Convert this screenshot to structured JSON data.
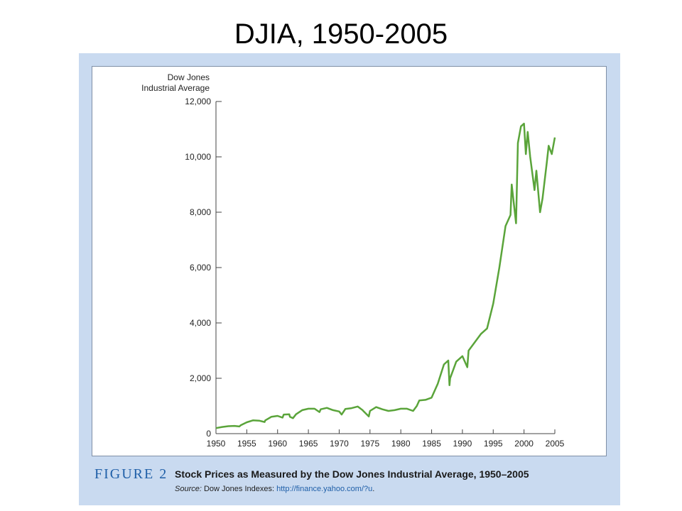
{
  "slide": {
    "title": "DJIA, 1950-2005"
  },
  "figure": {
    "label": "FIGURE 2",
    "caption": "Stock Prices as Measured by the Dow Jones Industrial Average, 1950–2005",
    "source_label": "Source:",
    "source_text": "Dow Jones Indexes:",
    "source_link": "http://finance.yahoo.com/?u",
    "source_end": "."
  },
  "chart_data": {
    "type": "line",
    "title": "",
    "ylabel_lines": [
      "Dow Jones",
      "Industrial Average"
    ],
    "xlabel": "",
    "xlim": [
      1950,
      2005
    ],
    "ylim": [
      0,
      12000
    ],
    "x_ticks": [
      "1950",
      "1955",
      "1960",
      "1965",
      "1970",
      "1975",
      "1980",
      "1985",
      "1990",
      "1995",
      "2000",
      "2005"
    ],
    "y_ticks": [
      "0",
      "2,000",
      "4,000",
      "6,000",
      "8,000",
      "10,000",
      "12,000"
    ],
    "grid": false,
    "line_color": "#5aa43a",
    "series": [
      {
        "x": [
          1950,
          1951,
          1952,
          1953,
          1953.8,
          1954,
          1955,
          1956,
          1957,
          1957.9,
          1958,
          1959,
          1960,
          1960.8,
          1961,
          1961.9,
          1962,
          1962.5,
          1963,
          1964,
          1965,
          1966,
          1966.8,
          1967,
          1968,
          1969,
          1970,
          1970.4,
          1971,
          1972,
          1973,
          1973.8,
          1974,
          1974.8,
          1975,
          1976,
          1977,
          1978,
          1979,
          1980,
          1981,
          1982,
          1982.6,
          1983,
          1984,
          1985,
          1986,
          1987,
          1987.7,
          1987.9,
          1988,
          1989,
          1990,
          1990.8,
          1991,
          1992,
          1993,
          1994,
          1995,
          1996,
          1997,
          1997.8,
          1998,
          1998.7,
          1999,
          1999.5,
          2000,
          2000.3,
          2000.6,
          2001,
          2001.7,
          2002,
          2002.6,
          2003,
          2003.7,
          2004,
          2004.5,
          2005
        ],
        "y": [
          200,
          240,
          270,
          280,
          260,
          300,
          410,
          480,
          470,
          420,
          480,
          610,
          640,
          580,
          690,
          700,
          610,
          560,
          700,
          850,
          900,
          900,
          780,
          880,
          930,
          850,
          800,
          690,
          890,
          920,
          980,
          850,
          800,
          620,
          820,
          960,
          880,
          820,
          850,
          900,
          900,
          820,
          1000,
          1200,
          1220,
          1300,
          1800,
          2500,
          2640,
          1750,
          2000,
          2600,
          2800,
          2400,
          3000,
          3300,
          3600,
          3800,
          4700,
          6000,
          7500,
          7900,
          9000,
          7600,
          10500,
          11100,
          11200,
          10100,
          10900,
          10000,
          8800,
          9500,
          8000,
          8500,
          9800,
          10400,
          10100,
          10700
        ]
      }
    ]
  }
}
